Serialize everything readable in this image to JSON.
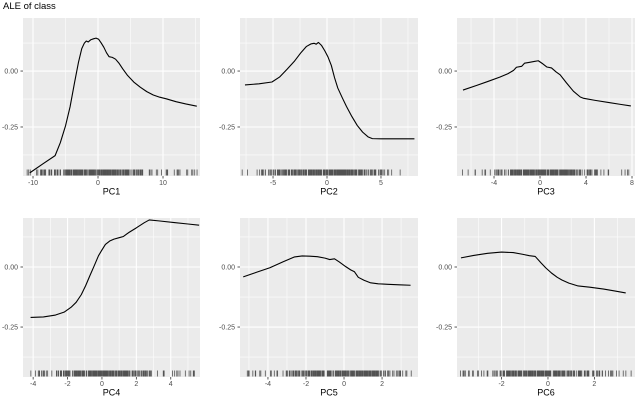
{
  "title": "ALE of class",
  "colors": {
    "panel_background": "#EBEBEB",
    "grid_major": "#FFFFFF",
    "grid_minor": "#FFFFFF",
    "curve": "#000000",
    "rug": "#000000",
    "tick_mark": "#333333",
    "tick_text": "#4D4D4D",
    "axis_title_text": "#000000"
  },
  "chart_data": [
    {
      "type": "line",
      "xlabel": "PC1",
      "ylabel": "",
      "xlim": [
        -11.54,
        15.69
      ],
      "ylim": [
        -0.469,
        0.237
      ],
      "x_ticks": [
        -10,
        0,
        10
      ],
      "x_tick_labels": [
        "-10",
        "0",
        "10"
      ],
      "x_minor_ticks": [
        -5,
        5,
        15
      ],
      "y_ticks": [
        0,
        -0.25
      ],
      "y_tick_labels": [
        "0.00",
        "-0.25"
      ],
      "y_minor_ticks": [
        0.125,
        -0.125,
        -0.375
      ],
      "grid": true,
      "legend": "none",
      "points": [
        [
          -10.5,
          -0.455
        ],
        [
          -8.5,
          -0.415
        ],
        [
          -6.6,
          -0.378
        ],
        [
          -5.8,
          -0.32
        ],
        [
          -5.0,
          -0.245
        ],
        [
          -4.3,
          -0.16
        ],
        [
          -3.6,
          -0.05
        ],
        [
          -3.0,
          0.04
        ],
        [
          -2.5,
          0.1
        ],
        [
          -2.1,
          0.125
        ],
        [
          -1.8,
          0.134
        ],
        [
          -1.5,
          0.13
        ],
        [
          -1.1,
          0.14
        ],
        [
          -0.7,
          0.144
        ],
        [
          -0.3,
          0.147
        ],
        [
          0.1,
          0.142
        ],
        [
          0.5,
          0.125
        ],
        [
          0.9,
          0.106
        ],
        [
          1.3,
          0.082
        ],
        [
          1.7,
          0.064
        ],
        [
          2.2,
          0.061
        ],
        [
          2.7,
          0.053
        ],
        [
          3.2,
          0.036
        ],
        [
          3.8,
          0.01
        ],
        [
          4.5,
          -0.018
        ],
        [
          5.5,
          -0.049
        ],
        [
          6.5,
          -0.072
        ],
        [
          7.5,
          -0.092
        ],
        [
          8.5,
          -0.107
        ],
        [
          9.5,
          -0.117
        ],
        [
          10.5,
          -0.124
        ],
        [
          12,
          -0.137
        ],
        [
          13.5,
          -0.147
        ],
        [
          15.2,
          -0.157
        ]
      ],
      "rug": {
        "count": 270,
        "mean": 0.2,
        "sd": 3.6,
        "uniform_fraction": 0.18,
        "range": [
          -11.0,
          15.3
        ],
        "seed": 11
      }
    },
    {
      "type": "line",
      "xlabel": "PC2",
      "ylabel": "",
      "xlim": [
        -8.06,
        8.43
      ],
      "ylim": [
        -0.469,
        0.237
      ],
      "x_ticks": [
        -5,
        0,
        5
      ],
      "x_tick_labels": [
        "-5",
        "0",
        "5"
      ],
      "x_minor_ticks": [
        -7.5,
        -2.5,
        2.5,
        7.5
      ],
      "y_ticks": [
        0,
        -0.25
      ],
      "y_tick_labels": [
        "0.00",
        "-0.25"
      ],
      "y_minor_ticks": [
        0.125,
        -0.125,
        -0.375
      ],
      "grid": true,
      "legend": "none",
      "points": [
        [
          -7.6,
          -0.062
        ],
        [
          -6.3,
          -0.057
        ],
        [
          -5.1,
          -0.049
        ],
        [
          -4.4,
          -0.027
        ],
        [
          -3.7,
          0.008
        ],
        [
          -3.0,
          0.045
        ],
        [
          -2.4,
          0.083
        ],
        [
          -1.9,
          0.11
        ],
        [
          -1.5,
          0.121
        ],
        [
          -1.2,
          0.124
        ],
        [
          -1.0,
          0.12
        ],
        [
          -0.8,
          0.128
        ],
        [
          -0.5,
          0.114
        ],
        [
          -0.2,
          0.09
        ],
        [
          0.1,
          0.062
        ],
        [
          0.4,
          0.025
        ],
        [
          0.7,
          -0.03
        ],
        [
          1.0,
          -0.076
        ],
        [
          1.4,
          -0.118
        ],
        [
          1.8,
          -0.158
        ],
        [
          2.3,
          -0.203
        ],
        [
          2.8,
          -0.243
        ],
        [
          3.3,
          -0.273
        ],
        [
          3.8,
          -0.294
        ],
        [
          4.2,
          -0.302
        ],
        [
          5.0,
          -0.303
        ],
        [
          6.5,
          -0.303
        ],
        [
          8.1,
          -0.303
        ]
      ],
      "rug": {
        "count": 270,
        "mean": -0.4,
        "sd": 2.6,
        "uniform_fraction": 0.18,
        "range": [
          -7.9,
          8.3
        ],
        "seed": 22
      }
    },
    {
      "type": "line",
      "xlabel": "PC3",
      "ylabel": "",
      "xlim": [
        -7.22,
        8.26
      ],
      "ylim": [
        -0.469,
        0.237
      ],
      "x_ticks": [
        -4,
        0,
        4,
        8
      ],
      "x_tick_labels": [
        "-4",
        "0",
        "4",
        "8"
      ],
      "x_minor_ticks": [
        -6,
        -2,
        2,
        6
      ],
      "y_ticks": [
        0,
        -0.25
      ],
      "y_tick_labels": [
        "0.00",
        "-0.25"
      ],
      "y_minor_ticks": [
        0.125,
        -0.125,
        -0.375
      ],
      "grid": true,
      "legend": "none",
      "points": [
        [
          -6.7,
          -0.085
        ],
        [
          -5.5,
          -0.064
        ],
        [
          -4.5,
          -0.046
        ],
        [
          -3.5,
          -0.027
        ],
        [
          -2.8,
          -0.012
        ],
        [
          -2.3,
          0.003
        ],
        [
          -2.05,
          0.017
        ],
        [
          -1.6,
          0.021
        ],
        [
          -1.35,
          0.035
        ],
        [
          -0.9,
          0.039
        ],
        [
          -0.5,
          0.043
        ],
        [
          -0.15,
          0.046
        ],
        [
          0.25,
          0.032
        ],
        [
          0.6,
          0.018
        ],
        [
          1.0,
          0.014
        ],
        [
          1.4,
          -0.004
        ],
        [
          1.75,
          -0.017
        ],
        [
          2.3,
          -0.053
        ],
        [
          2.9,
          -0.09
        ],
        [
          3.5,
          -0.116
        ],
        [
          3.8,
          -0.122
        ],
        [
          4.8,
          -0.131
        ],
        [
          6.0,
          -0.141
        ],
        [
          7.0,
          -0.149
        ],
        [
          7.9,
          -0.156
        ]
      ],
      "rug": {
        "count": 270,
        "mean": 0.2,
        "sd": 2.0,
        "uniform_fraction": 0.18,
        "range": [
          -6.9,
          7.9
        ],
        "seed": 33
      }
    },
    {
      "type": "line",
      "xlabel": "PC4",
      "ylabel": "",
      "xlim": [
        -4.59,
        5.7
      ],
      "ylim": [
        -0.458,
        0.204
      ],
      "x_ticks": [
        -4,
        -2,
        0,
        2,
        4,
        6
      ],
      "x_tick_labels": [
        "-4",
        "-2",
        "0",
        "2",
        "4",
        "6"
      ],
      "x_minor_ticks": [
        -3,
        -1,
        1,
        3,
        5
      ],
      "y_ticks": [
        0,
        -0.25
      ],
      "y_tick_labels": [
        "0.00",
        "-0.25"
      ],
      "y_minor_ticks": [
        0.125,
        -0.125,
        -0.375
      ],
      "grid": true,
      "legend": "none",
      "points": [
        [
          -4.15,
          -0.21
        ],
        [
          -3.4,
          -0.208
        ],
        [
          -2.7,
          -0.2
        ],
        [
          -2.2,
          -0.188
        ],
        [
          -1.8,
          -0.168
        ],
        [
          -1.5,
          -0.147
        ],
        [
          -1.2,
          -0.115
        ],
        [
          -0.95,
          -0.078
        ],
        [
          -0.7,
          -0.036
        ],
        [
          -0.45,
          0.005
        ],
        [
          -0.2,
          0.047
        ],
        [
          0,
          0.071
        ],
        [
          0.2,
          0.094
        ],
        [
          0.45,
          0.108
        ],
        [
          0.7,
          0.116
        ],
        [
          1.0,
          0.122
        ],
        [
          1.25,
          0.127
        ],
        [
          1.55,
          0.143
        ],
        [
          2.0,
          0.163
        ],
        [
          2.45,
          0.184
        ],
        [
          2.75,
          0.196
        ],
        [
          3.3,
          0.192
        ],
        [
          4.2,
          0.185
        ],
        [
          5.0,
          0.179
        ],
        [
          5.65,
          0.174
        ]
      ],
      "rug": {
        "count": 270,
        "mean": 0.1,
        "sd": 1.5,
        "uniform_fraction": 0.18,
        "range": [
          -4.3,
          5.6
        ],
        "seed": 44
      }
    },
    {
      "type": "line",
      "xlabel": "PC5",
      "ylabel": "",
      "xlim": [
        -5.47,
        3.89
      ],
      "ylim": [
        -0.458,
        0.204
      ],
      "x_ticks": [
        -4,
        -2,
        0,
        2
      ],
      "x_tick_labels": [
        "-4",
        "-2",
        "0",
        "2"
      ],
      "x_minor_ticks": [
        -5,
        -3,
        -1,
        1,
        3
      ],
      "y_ticks": [
        0,
        -0.25
      ],
      "y_tick_labels": [
        "0.00",
        "-0.25"
      ],
      "y_minor_ticks": [
        0.125,
        -0.125,
        -0.375
      ],
      "grid": true,
      "legend": "none",
      "points": [
        [
          -5.3,
          -0.041
        ],
        [
          -4.6,
          -0.022
        ],
        [
          -3.9,
          -0.003
        ],
        [
          -3.2,
          0.022
        ],
        [
          -2.6,
          0.042
        ],
        [
          -2.2,
          0.046
        ],
        [
          -1.8,
          0.045
        ],
        [
          -1.4,
          0.043
        ],
        [
          -1.0,
          0.037
        ],
        [
          -0.75,
          0.031
        ],
        [
          -0.5,
          0.034
        ],
        [
          -0.25,
          0.021
        ],
        [
          0.1,
          0.001
        ],
        [
          0.35,
          -0.012
        ],
        [
          0.55,
          -0.02
        ],
        [
          0.75,
          -0.043
        ],
        [
          1.05,
          -0.055
        ],
        [
          1.4,
          -0.066
        ],
        [
          1.8,
          -0.07
        ],
        [
          2.3,
          -0.072
        ],
        [
          2.9,
          -0.074
        ],
        [
          3.5,
          -0.076
        ]
      ],
      "rug": {
        "count": 270,
        "mean": 0.0,
        "sd": 1.4,
        "uniform_fraction": 0.18,
        "range": [
          -5.3,
          3.8
        ],
        "seed": 55
      }
    },
    {
      "type": "line",
      "xlabel": "PC6",
      "ylabel": "",
      "xlim": [
        -3.92,
        3.75
      ],
      "ylim": [
        -0.458,
        0.204
      ],
      "x_ticks": [
        -2,
        0,
        2
      ],
      "x_tick_labels": [
        "-2",
        "0",
        "2"
      ],
      "x_minor_ticks": [
        -3,
        -1,
        1,
        3
      ],
      "y_ticks": [
        0,
        -0.25
      ],
      "y_tick_labels": [
        "0.00",
        "-0.25"
      ],
      "y_minor_ticks": [
        0.125,
        -0.125,
        -0.375
      ],
      "grid": true,
      "legend": "none",
      "points": [
        [
          -3.75,
          0.038
        ],
        [
          -3.2,
          0.048
        ],
        [
          -2.6,
          0.057
        ],
        [
          -2.0,
          0.062
        ],
        [
          -1.5,
          0.06
        ],
        [
          -1.1,
          0.053
        ],
        [
          -0.8,
          0.047
        ],
        [
          -0.55,
          0.044
        ],
        [
          -0.3,
          0.017
        ],
        [
          -0.1,
          -0.003
        ],
        [
          0.15,
          -0.025
        ],
        [
          0.4,
          -0.043
        ],
        [
          0.6,
          -0.054
        ],
        [
          0.9,
          -0.067
        ],
        [
          1.3,
          -0.079
        ],
        [
          1.8,
          -0.084
        ],
        [
          2.4,
          -0.092
        ],
        [
          2.9,
          -0.1
        ],
        [
          3.35,
          -0.108
        ]
      ],
      "rug": {
        "count": 270,
        "mean": -0.2,
        "sd": 1.2,
        "uniform_fraction": 0.18,
        "range": [
          -3.8,
          3.6
        ],
        "seed": 66
      }
    }
  ]
}
